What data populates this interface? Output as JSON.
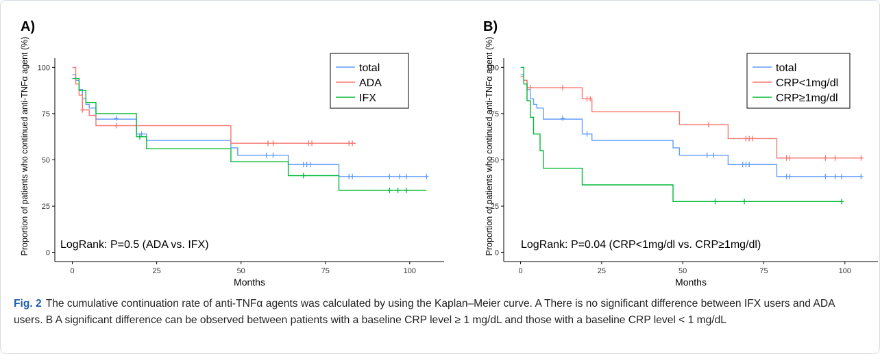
{
  "chart_data": [
    {
      "type": "line",
      "panel_label": "A)",
      "xlabel": "Months",
      "ylabel": "Proportion of patients who continued anti-TNFα agent (%)",
      "xlim": [
        0,
        105
      ],
      "ylim": [
        0,
        100
      ],
      "xticks": [
        "0",
        "25",
        "50",
        "75",
        "100"
      ],
      "yticks": [
        "0",
        "25",
        "50",
        "75",
        "100"
      ],
      "grid": false,
      "legend_position": "top-right",
      "annotation": "LogRank: P=0.5 (ADA vs. IFX)",
      "series": [
        {
          "name": "total",
          "color": "#619cff",
          "steps": [
            [
              0,
              96
            ],
            [
              1,
              93
            ],
            [
              2,
              88
            ],
            [
              3,
              83
            ],
            [
              4,
              80
            ],
            [
              5,
              78
            ],
            [
              7,
              72
            ],
            [
              18,
              72
            ],
            [
              19,
              64
            ],
            [
              22,
              60.5
            ],
            [
              46,
              60.5
            ],
            [
              47,
              56.5
            ],
            [
              49,
              52.5
            ],
            [
              63,
              52.5
            ],
            [
              64,
              47.5
            ],
            [
              78,
              47.5
            ],
            [
              79,
              41
            ],
            [
              105,
              41
            ]
          ],
          "censored": [
            [
              13,
              72.5
            ],
            [
              20.5,
              64
            ],
            [
              57.5,
              52.5
            ],
            [
              59.5,
              52.5
            ],
            [
              68.5,
              47.5
            ],
            [
              69.5,
              47.5
            ],
            [
              70.5,
              47.5
            ],
            [
              82,
              41
            ],
            [
              83,
              41
            ],
            [
              94,
              41
            ],
            [
              97,
              41
            ],
            [
              99,
              41
            ],
            [
              105,
              41
            ]
          ]
        },
        {
          "name": "ADA",
          "color": "#f8766d",
          "steps": [
            [
              0,
              100
            ],
            [
              1,
              91
            ],
            [
              2,
              85
            ],
            [
              3,
              77
            ],
            [
              5,
              74
            ],
            [
              7,
              68.5
            ],
            [
              46,
              68.5
            ],
            [
              47,
              59
            ],
            [
              84,
              59
            ]
          ],
          "censored": [
            [
              3,
              77
            ],
            [
              13,
              68.5
            ],
            [
              58,
              59
            ],
            [
              59.5,
              59
            ],
            [
              70,
              59
            ],
            [
              71,
              59
            ],
            [
              82,
              59
            ],
            [
              83,
              59
            ]
          ]
        },
        {
          "name": "IFX",
          "color": "#00ba38",
          "steps": [
            [
              0,
              94
            ],
            [
              2,
              87.5
            ],
            [
              4,
              81
            ],
            [
              7,
              75
            ],
            [
              18,
              75
            ],
            [
              19,
              62.5
            ],
            [
              22,
              56
            ],
            [
              46,
              56
            ],
            [
              47,
              49
            ],
            [
              63,
              49
            ],
            [
              64,
              41.5
            ],
            [
              78,
              41.5
            ],
            [
              79,
              33.5
            ],
            [
              105,
              33.5
            ]
          ],
          "censored": [
            [
              20,
              62.5
            ],
            [
              68.5,
              41.5
            ],
            [
              94,
              33.5
            ],
            [
              96.5,
              33.5
            ],
            [
              99,
              33.5
            ]
          ]
        }
      ]
    },
    {
      "type": "line",
      "panel_label": "B)",
      "xlabel": "Months",
      "ylabel": "Proportion of patients who continued anti-TNFα agent (%)",
      "xlim": [
        0,
        105
      ],
      "ylim": [
        0,
        100
      ],
      "xticks": [
        "0",
        "25",
        "50",
        "75",
        "100"
      ],
      "yticks": [
        "0",
        "25",
        "50",
        "75",
        "100"
      ],
      "grid": false,
      "legend_position": "top-right",
      "annotation": "LogRank: P=0.04 (CRP<1mg/dl vs. CRP≥1mg/dl)",
      "series": [
        {
          "name": "total",
          "color": "#619cff",
          "steps": [
            [
              0,
              96
            ],
            [
              1,
              93
            ],
            [
              2,
              88
            ],
            [
              3,
              83
            ],
            [
              4,
              80
            ],
            [
              5,
              78
            ],
            [
              7,
              72
            ],
            [
              18,
              72
            ],
            [
              19,
              64
            ],
            [
              22,
              60.5
            ],
            [
              46,
              60.5
            ],
            [
              47,
              56.5
            ],
            [
              49,
              52.5
            ],
            [
              63,
              52.5
            ],
            [
              64,
              47.5
            ],
            [
              78,
              47.5
            ],
            [
              79,
              41
            ],
            [
              105,
              41
            ]
          ],
          "censored": [
            [
              13,
              72.5
            ],
            [
              20.5,
              64
            ],
            [
              57.5,
              52.5
            ],
            [
              59.5,
              52.5
            ],
            [
              68.5,
              47.5
            ],
            [
              69.5,
              47.5
            ],
            [
              70.5,
              47.5
            ],
            [
              82,
              41
            ],
            [
              83,
              41
            ],
            [
              94,
              41
            ],
            [
              97,
              41
            ],
            [
              99,
              41
            ],
            [
              105,
              41
            ]
          ]
        },
        {
          "name": "CRP<1mg/dl",
          "color": "#f8766d",
          "steps": [
            [
              0,
              95
            ],
            [
              1,
              93
            ],
            [
              2,
              89
            ],
            [
              18,
              89
            ],
            [
              19,
              83
            ],
            [
              22,
              76
            ],
            [
              46,
              76
            ],
            [
              49,
              69
            ],
            [
              63,
              69
            ],
            [
              64,
              61.5
            ],
            [
              78,
              61.5
            ],
            [
              79,
              51
            ],
            [
              105,
              51
            ]
          ],
          "censored": [
            [
              3,
              89
            ],
            [
              13,
              89
            ],
            [
              20.5,
              83
            ],
            [
              21.5,
              83
            ],
            [
              58,
              69
            ],
            [
              69.5,
              61.5
            ],
            [
              70.5,
              61.5
            ],
            [
              71.5,
              61.5
            ],
            [
              82,
              51
            ],
            [
              83,
              51
            ],
            [
              94,
              51
            ],
            [
              97,
              51
            ],
            [
              105,
              51
            ]
          ]
        },
        {
          "name": "CRP≥1mg/dl",
          "color": "#00ba38",
          "steps": [
            [
              0,
              100
            ],
            [
              1,
              91
            ],
            [
              2,
              82
            ],
            [
              3,
              73
            ],
            [
              4,
              64
            ],
            [
              6,
              55
            ],
            [
              7,
              45.5
            ],
            [
              18,
              45.5
            ],
            [
              19,
              36.5
            ],
            [
              46,
              36.5
            ],
            [
              47,
              27.5
            ],
            [
              99,
              27.5
            ]
          ],
          "censored": [
            [
              60,
              27.5
            ],
            [
              69,
              27.5
            ],
            [
              99,
              27.5
            ]
          ]
        }
      ]
    }
  ],
  "caption": {
    "label": "Fig. 2",
    "text": "The cumulative continuation rate of anti-TNFα agents was calculated by using the Kaplan–Meier curve. A There is no significant difference between IFX users and ADA users. B A significant difference can be observed between patients with a baseline CRP level ≥ 1 mg/dL and those with a baseline CRP level < 1 mg/dL"
  }
}
